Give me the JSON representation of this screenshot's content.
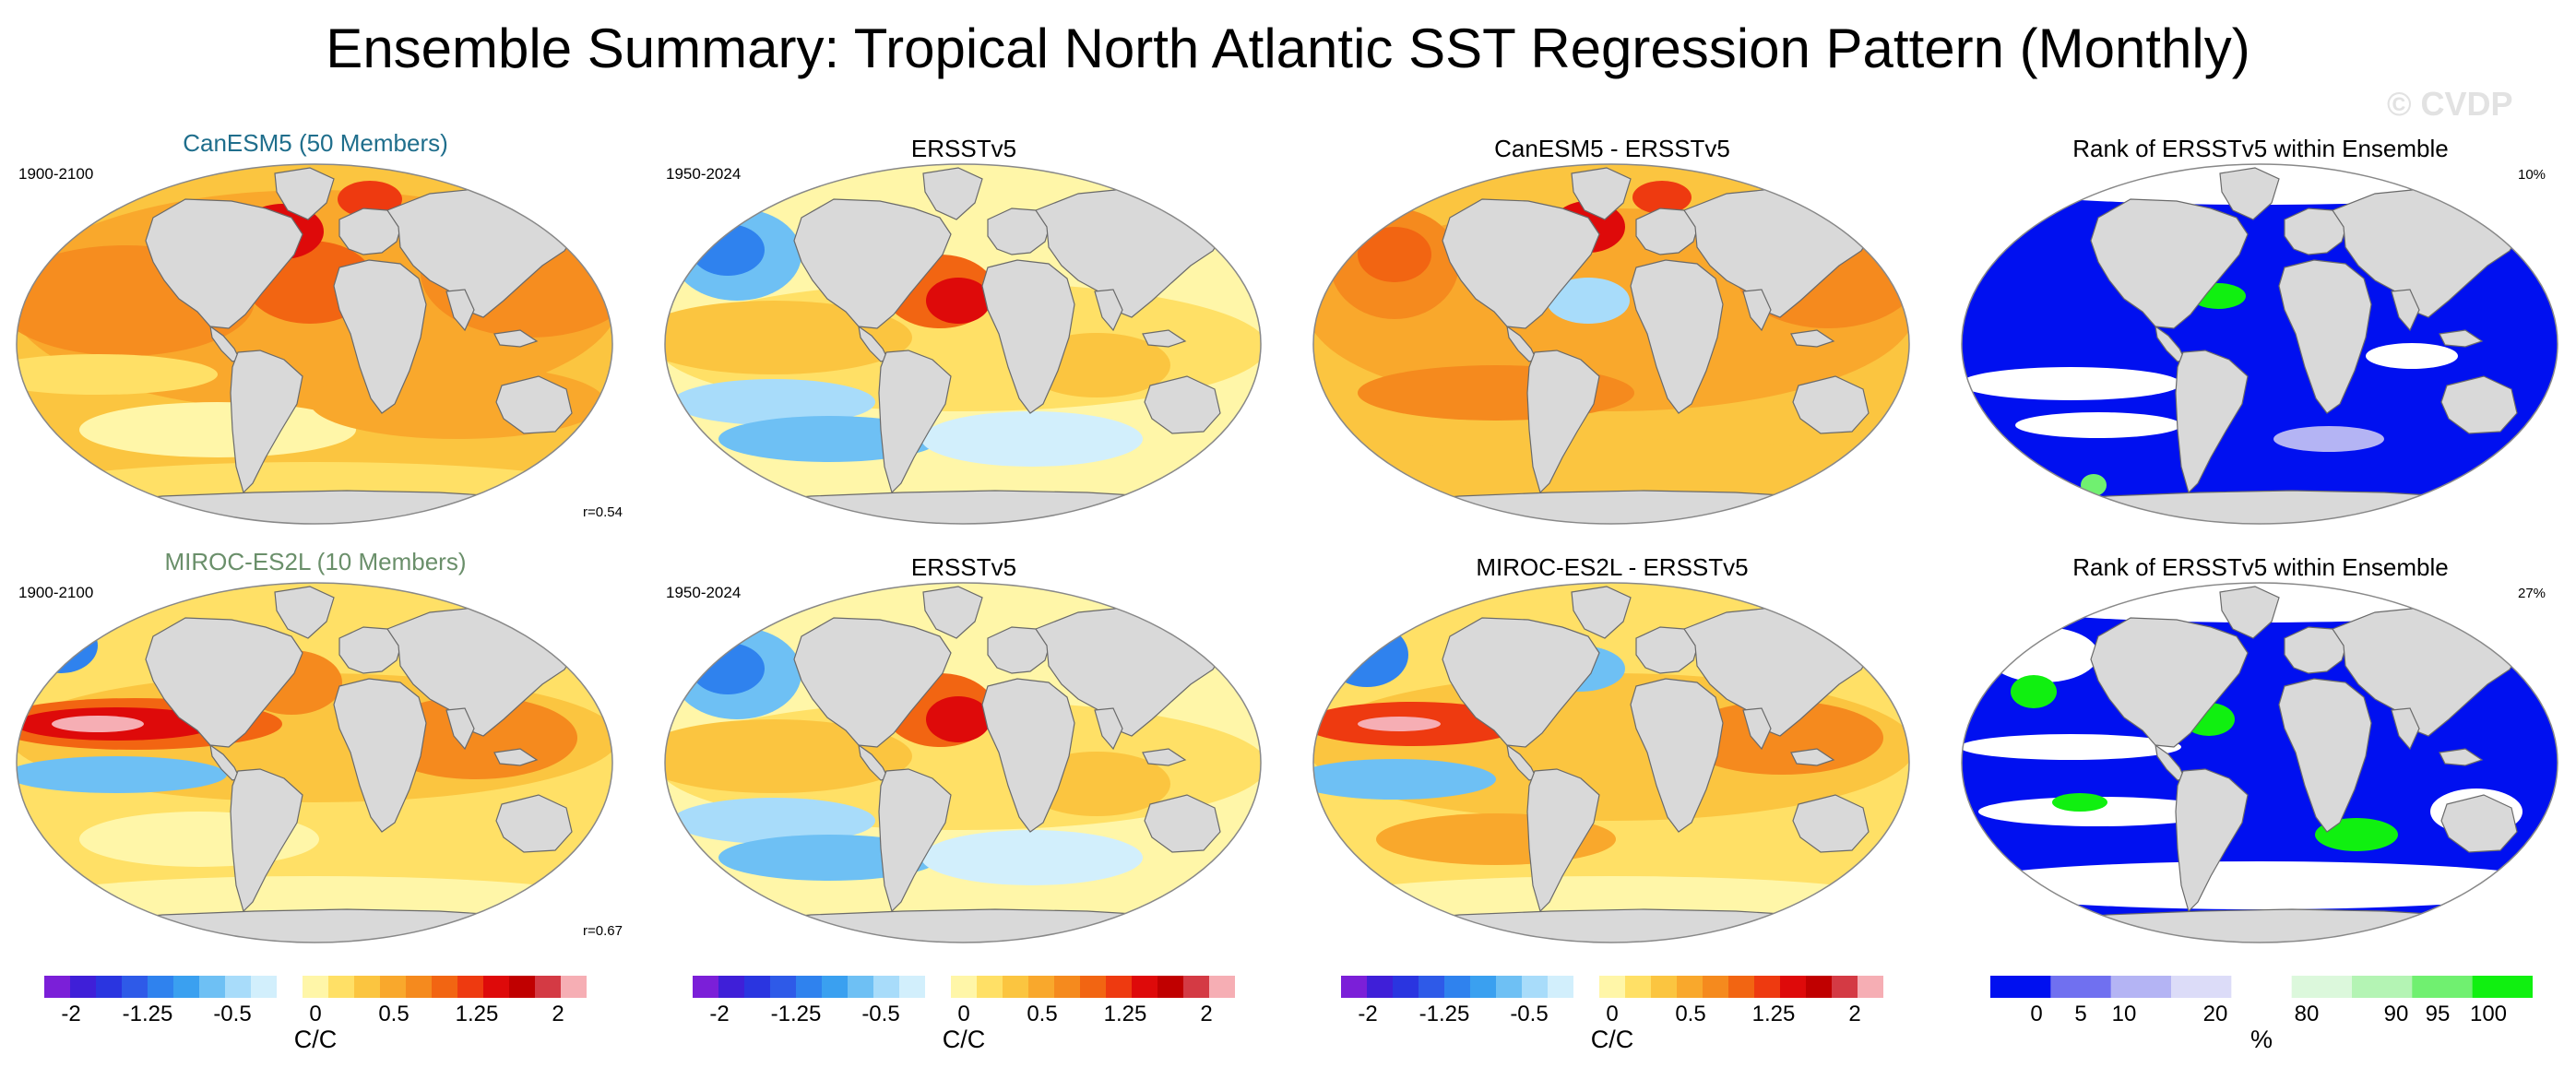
{
  "title": "Ensemble Summary: Tropical North Atlantic SST Regression Pattern (Monthly)",
  "watermark": "© CVDP",
  "rows": [
    {
      "model_title": "CanESM5 (50 Members)",
      "model_period": "1900-2100",
      "model_corr": "r=0.54",
      "obs_title": "ERSSTv5",
      "obs_period": "1950-2024",
      "diff_title": "CanESM5 - ERSSTv5",
      "rank_title": "Rank of ERSSTv5 within Ensemble",
      "rank_pct": "10%"
    },
    {
      "model_title": "MIROC-ES2L (10 Members)",
      "model_period": "1900-2100",
      "model_corr": "r=0.67",
      "obs_title": "ERSSTv5",
      "obs_period": "1950-2024",
      "diff_title": "MIROC-ES2L - ERSSTv5",
      "rank_title": "Rank of ERSSTv5 within Ensemble",
      "rank_pct": "27%"
    }
  ],
  "colorbars": {
    "sst": {
      "unit": "C/C",
      "ticks": [
        "-2",
        "-1.25",
        "-0.5",
        "0",
        "0.5",
        "1.25",
        "2"
      ],
      "colors": [
        "#7b1fd8",
        "#3f1fd8",
        "#2a35e0",
        "#2e5ae8",
        "#2f82ee",
        "#3aa0f0",
        "#6ec0f4",
        "#a8dcfa",
        "#d2effc",
        "#ffffff",
        "#fff6a8",
        "#ffe066",
        "#fbc540",
        "#f9a82c",
        "#f58a1e",
        "#f26512",
        "#ee3a10",
        "#de0a0a",
        "#c00000",
        "#d43a44",
        "#f6aeb4"
      ]
    },
    "rank": {
      "unit": "%",
      "ticks": [
        "0",
        "5",
        "10",
        "20",
        "80",
        "90",
        "95",
        "100"
      ],
      "colors": [
        "#0010f0",
        "#7070f0",
        "#b4b4f4",
        "#dcdcf8",
        "#ffffff",
        "#dcf8dc",
        "#b4f4b4",
        "#70f070",
        "#10f010"
      ]
    }
  }
}
